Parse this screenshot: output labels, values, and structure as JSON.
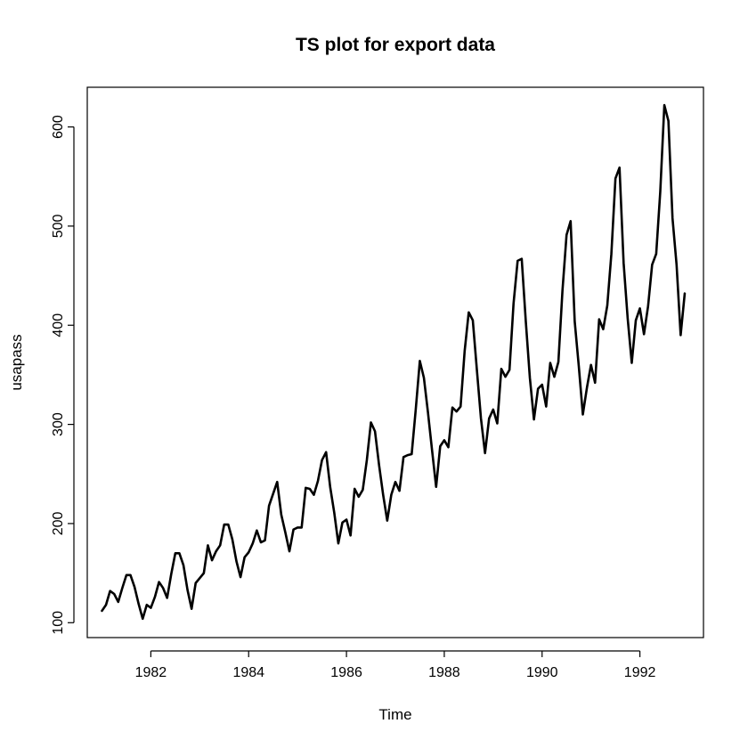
{
  "chart_data": {
    "type": "line",
    "title": "TS plot for export data",
    "xlabel": "Time",
    "ylabel": "usapass",
    "xlim": [
      1980.7,
      1993.3
    ],
    "ylim": [
      85,
      640
    ],
    "x_ticks": [
      1982,
      1984,
      1986,
      1988,
      1990,
      1992
    ],
    "y_ticks": [
      100,
      200,
      300,
      400,
      500,
      600
    ],
    "grid": false,
    "series": [
      {
        "x_start": 1981.0,
        "frequency": 12,
        "values": [
          112,
          118,
          132,
          129,
          121,
          135,
          148,
          148,
          136,
          119,
          104,
          118,
          115,
          126,
          141,
          135,
          125,
          149,
          170,
          170,
          158,
          133,
          114,
          140,
          145,
          150,
          178,
          163,
          172,
          178,
          199,
          199,
          184,
          162,
          146,
          166,
          171,
          180,
          193,
          181,
          183,
          218,
          230,
          242,
          209,
          191,
          172,
          194,
          196,
          196,
          236,
          235,
          229,
          243,
          264,
          272,
          237,
          211,
          180,
          201,
          204,
          188,
          235,
          227,
          234,
          264,
          302,
          293,
          259,
          229,
          203,
          229,
          242,
          233,
          267,
          269,
          270,
          315,
          364,
          347,
          312,
          274,
          237,
          278,
          284,
          277,
          317,
          313,
          318,
          374,
          413,
          405,
          355,
          306,
          271,
          306,
          315,
          301,
          356,
          348,
          355,
          422,
          465,
          467,
          404,
          347,
          305,
          336,
          340,
          318,
          362,
          348,
          363,
          435,
          491,
          505,
          404,
          359,
          310,
          337,
          360,
          342,
          406,
          396,
          420,
          472,
          548,
          559,
          463,
          407,
          362,
          405,
          417,
          391,
          419,
          461,
          472,
          535,
          622,
          606,
          508,
          461,
          390,
          432
        ]
      }
    ]
  }
}
